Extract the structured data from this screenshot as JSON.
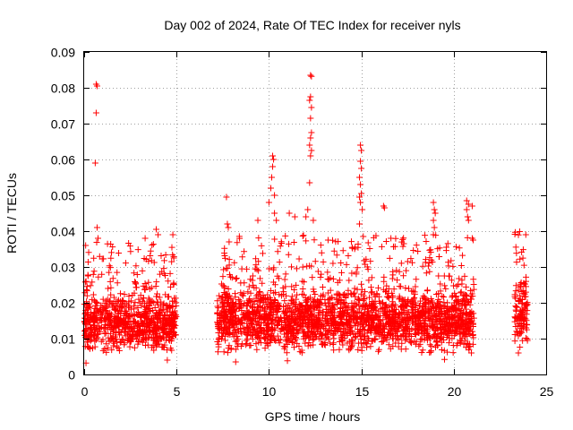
{
  "chart_data": {
    "type": "scatter",
    "title": "Day 002 of 2024, Rate Of TEC Index for receiver nyls",
    "xlabel": "GPS time / hours",
    "ylabel": "ROTI / TECUs",
    "xlim": [
      0,
      25
    ],
    "ylim": [
      0,
      0.09
    ],
    "xticks": [
      0,
      5,
      10,
      15,
      20,
      25
    ],
    "xtick_labels": [
      "0",
      "5",
      "10",
      "15",
      "20",
      "25"
    ],
    "yticks": [
      0,
      0.01,
      0.02,
      0.03,
      0.04,
      0.05,
      0.06,
      0.07,
      0.08,
      0.09
    ],
    "ytick_labels": [
      "0",
      "0.01",
      "0.02",
      "0.03",
      "0.04",
      "0.05",
      "0.06",
      "0.07",
      "0.08",
      "0.09"
    ],
    "grid": true,
    "legend": "none",
    "marker": "+",
    "color": "#ff0000",
    "series": [
      {
        "segments": [
          {
            "x_start": 0.0,
            "x_end": 5.0,
            "typical_range": [
              0.006,
              0.026
            ]
          },
          {
            "x_start": 7.2,
            "x_end": 21.1,
            "typical_range": [
              0.006,
              0.028
            ]
          },
          {
            "x_start": 23.3,
            "x_end": 24.0,
            "typical_range": [
              0.007,
              0.03
            ]
          }
        ],
        "points": [
          {
            "x": 0.65,
            "y": 0.081
          },
          {
            "x": 0.7,
            "y": 0.0805
          },
          {
            "x": 0.65,
            "y": 0.073
          },
          {
            "x": 0.6,
            "y": 0.059
          },
          {
            "x": 0.7,
            "y": 0.041
          },
          {
            "x": 0.75,
            "y": 0.038
          },
          {
            "x": 7.7,
            "y": 0.0495
          },
          {
            "x": 7.75,
            "y": 0.042
          },
          {
            "x": 7.8,
            "y": 0.041
          },
          {
            "x": 10.2,
            "y": 0.061
          },
          {
            "x": 10.25,
            "y": 0.06
          },
          {
            "x": 10.2,
            "y": 0.058
          },
          {
            "x": 10.15,
            "y": 0.055
          },
          {
            "x": 10.1,
            "y": 0.052
          },
          {
            "x": 10.3,
            "y": 0.05
          },
          {
            "x": 10.0,
            "y": 0.048
          },
          {
            "x": 10.3,
            "y": 0.045
          },
          {
            "x": 10.4,
            "y": 0.043
          },
          {
            "x": 12.25,
            "y": 0.0835
          },
          {
            "x": 12.3,
            "y": 0.0832
          },
          {
            "x": 12.25,
            "y": 0.0775
          },
          {
            "x": 12.2,
            "y": 0.0765
          },
          {
            "x": 12.3,
            "y": 0.0745
          },
          {
            "x": 12.25,
            "y": 0.0715
          },
          {
            "x": 12.3,
            "y": 0.0675
          },
          {
            "x": 12.25,
            "y": 0.066
          },
          {
            "x": 12.2,
            "y": 0.064
          },
          {
            "x": 12.3,
            "y": 0.0625
          },
          {
            "x": 12.25,
            "y": 0.061
          },
          {
            "x": 12.2,
            "y": 0.0535
          },
          {
            "x": 12.1,
            "y": 0.046
          },
          {
            "x": 12.0,
            "y": 0.044
          },
          {
            "x": 12.4,
            "y": 0.043
          },
          {
            "x": 14.95,
            "y": 0.064
          },
          {
            "x": 15.0,
            "y": 0.0625
          },
          {
            "x": 14.95,
            "y": 0.0595
          },
          {
            "x": 15.0,
            "y": 0.0575
          },
          {
            "x": 14.9,
            "y": 0.055
          },
          {
            "x": 14.95,
            "y": 0.053
          },
          {
            "x": 15.0,
            "y": 0.0505
          },
          {
            "x": 14.9,
            "y": 0.0495
          },
          {
            "x": 14.95,
            "y": 0.048
          },
          {
            "x": 15.05,
            "y": 0.046
          },
          {
            "x": 14.9,
            "y": 0.042
          },
          {
            "x": 16.2,
            "y": 0.047
          },
          {
            "x": 16.25,
            "y": 0.0465
          },
          {
            "x": 18.9,
            "y": 0.048
          },
          {
            "x": 18.95,
            "y": 0.046
          },
          {
            "x": 19.0,
            "y": 0.045
          },
          {
            "x": 18.9,
            "y": 0.043
          },
          {
            "x": 18.95,
            "y": 0.041
          },
          {
            "x": 18.9,
            "y": 0.039
          },
          {
            "x": 20.7,
            "y": 0.0485
          },
          {
            "x": 20.8,
            "y": 0.0475
          },
          {
            "x": 21.0,
            "y": 0.047
          },
          {
            "x": 20.7,
            "y": 0.046
          },
          {
            "x": 20.75,
            "y": 0.044
          },
          {
            "x": 20.8,
            "y": 0.043
          },
          {
            "x": 21.0,
            "y": 0.038
          },
          {
            "x": 21.05,
            "y": 0.0375
          },
          {
            "x": 11.1,
            "y": 0.045
          },
          {
            "x": 11.4,
            "y": 0.044
          },
          {
            "x": 9.4,
            "y": 0.043
          },
          {
            "x": 3.9,
            "y": 0.0405
          },
          {
            "x": 4.0,
            "y": 0.039
          },
          {
            "x": 4.8,
            "y": 0.039
          },
          {
            "x": 3.3,
            "y": 0.038
          },
          {
            "x": 23.9,
            "y": 0.039
          },
          {
            "x": 16.6,
            "y": 0.038
          },
          {
            "x": 13.2,
            "y": 0.0375
          },
          {
            "x": 17.3,
            "y": 0.0365
          },
          {
            "x": 19.6,
            "y": 0.0355
          },
          {
            "x": 0.1,
            "y": 0.0032
          },
          {
            "x": 4.5,
            "y": 0.004
          },
          {
            "x": 8.2,
            "y": 0.0035
          },
          {
            "x": 11.0,
            "y": 0.0038
          },
          {
            "x": 19.5,
            "y": 0.0042
          },
          {
            "x": 23.5,
            "y": 0.006
          }
        ]
      }
    ]
  }
}
